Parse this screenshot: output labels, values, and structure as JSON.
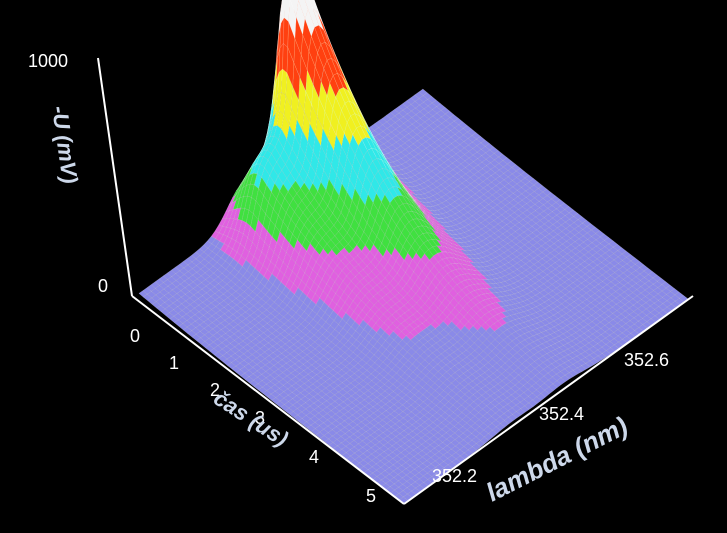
{
  "chart_data": {
    "type": "surface3d",
    "z_axis": {
      "label": "-U (mV)",
      "ticks": [
        "1000",
        "0"
      ],
      "range": [
        0,
        1000
      ]
    },
    "t_axis": {
      "label": "čas (us)",
      "ticks": [
        "0",
        "1",
        "2",
        "3",
        "4",
        "5"
      ],
      "range": [
        0,
        5
      ]
    },
    "lambda_axis": {
      "label": "lambda (nm)",
      "ticks": [
        "352.2",
        "352.4",
        "352.6"
      ],
      "range": [
        352.15,
        352.7
      ]
    },
    "peaks": [
      {
        "lambda": 352.46,
        "time_us": 0.7,
        "peak_mV": 1000
      },
      {
        "lambda": 352.36,
        "time_us": 0.7,
        "peak_mV": 300
      }
    ],
    "colormap": [
      "#8a8ae8",
      "#e060e0",
      "#40e040",
      "#30e8e8",
      "#f0f020",
      "#ff4010",
      "#f4f4f4"
    ],
    "grid": false,
    "legend": "none"
  }
}
